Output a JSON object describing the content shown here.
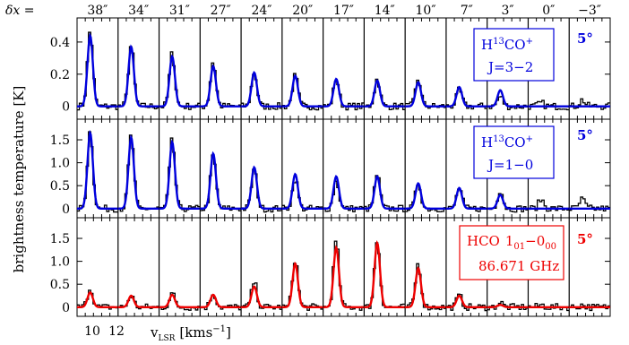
{
  "chart_data": {
    "type": "line",
    "delta_label": "δx =",
    "offsets": [
      "38″",
      "34″",
      "31″",
      "27″",
      "24″",
      "20″",
      "17″",
      "14″",
      "10″",
      "7″",
      "3″",
      "0″",
      "−3″"
    ],
    "ylabel": "brightness temperature [K]",
    "xlabel_main": "v",
    "xlabel_sub": "LSR",
    "xlabel_units": "[kms",
    "xlabel_exp": "−1",
    "xlabel_close": "]",
    "x_ticklabels": [
      "10",
      "12"
    ],
    "velocity_range_kms": [
      9,
      14
    ],
    "colors": {
      "data": "#000000",
      "fit_h13co": "#0000dd",
      "fit_hco": "#ee0000"
    },
    "rows": [
      {
        "id": "h13co-32",
        "species": "H",
        "species_sup": "13",
        "species_tail": "CO",
        "species_charge": "+",
        "transition": "J=3−2",
        "angle_label": "5°",
        "color": "#0000dd",
        "ylim": [
          -0.08,
          0.55
        ],
        "yticks": [
          0,
          0.2,
          0.4
        ],
        "ytick_labels": [
          "0",
          "0.2",
          "0.4"
        ],
        "peak_observed": [
          0.47,
          0.38,
          0.33,
          0.28,
          0.21,
          0.19,
          0.17,
          0.17,
          0.17,
          0.1,
          0.06,
          0.02,
          0.04
        ],
        "peak_fit": [
          0.44,
          0.37,
          0.31,
          0.25,
          0.21,
          0.19,
          0.17,
          0.16,
          0.15,
          0.12,
          0.1,
          0.0,
          0.0
        ]
      },
      {
        "id": "h13co-10",
        "species": "H",
        "species_sup": "13",
        "species_tail": "CO",
        "species_charge": "+",
        "transition": "J=1−0",
        "angle_label": "5°",
        "color": "#0000dd",
        "ylim": [
          -0.2,
          1.95
        ],
        "yticks": [
          0,
          0.5,
          1.0,
          1.5
        ],
        "ytick_labels": [
          "0",
          "0.5",
          "1.0",
          "1.5"
        ],
        "peak_observed": [
          1.7,
          1.6,
          1.5,
          1.15,
          0.85,
          0.65,
          0.6,
          0.75,
          0.55,
          0.45,
          0.4,
          0.2,
          0.2
        ],
        "peak_fit": [
          1.65,
          1.55,
          1.45,
          1.2,
          0.9,
          0.75,
          0.7,
          0.7,
          0.55,
          0.45,
          0.3,
          0.0,
          0.0
        ]
      },
      {
        "id": "hco",
        "species": "HCO",
        "transition_main": "1",
        "transition_sub1": "01",
        "transition_sep": "−0",
        "transition_sub2": "00",
        "frequency": "86.671 GHz",
        "angle_label": "5°",
        "color": "#ee0000",
        "ylim": [
          -0.2,
          1.95
        ],
        "yticks": [
          0,
          0.5,
          1.0,
          1.5
        ],
        "ytick_labels": [
          "0",
          "0.5",
          "1.0",
          "1.5"
        ],
        "peak_observed": [
          0.42,
          0.25,
          0.3,
          0.3,
          0.55,
          1.05,
          1.45,
          1.45,
          0.95,
          0.25,
          0.1,
          0.05,
          0.05
        ],
        "peak_fit": [
          0.32,
          0.25,
          0.27,
          0.27,
          0.45,
          0.95,
          1.3,
          1.4,
          0.85,
          0.25,
          0.05,
          0.0,
          0.0
        ]
      }
    ]
  }
}
